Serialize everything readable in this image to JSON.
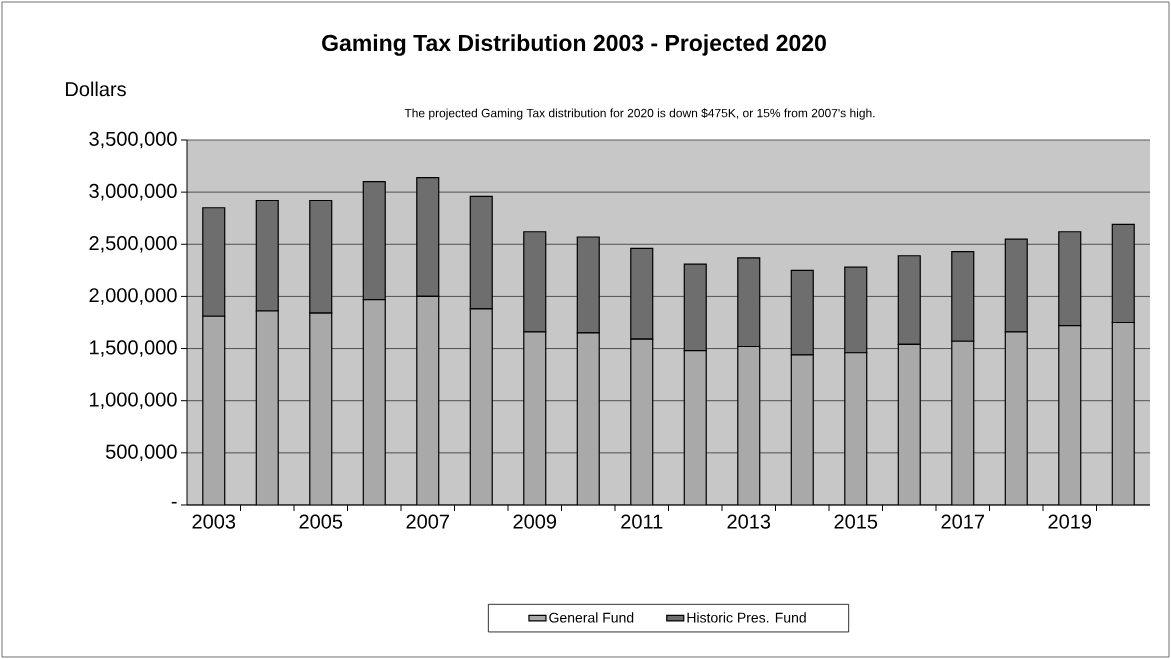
{
  "chart_data": {
    "type": "bar",
    "stacked": true,
    "title": "Gaming Tax Distribution 2003 - Projected 2020",
    "subtitle": "The projected Gaming Tax distribution for 2020 is down $475K, or 15% from 2007's high.",
    "ylabel": "Dollars",
    "categories": [
      "2003",
      null,
      "2005",
      null,
      "2007",
      null,
      "2009",
      null,
      "2011",
      null,
      "2013",
      null,
      "2015",
      null,
      "2017",
      null,
      "2019",
      null
    ],
    "series": [
      {
        "name": "General Fund",
        "color": "#a9a9a9",
        "values": [
          1810000,
          1860000,
          1840000,
          1970000,
          2000000,
          1880000,
          1660000,
          1650000,
          1590000,
          1480000,
          1520000,
          1440000,
          1460000,
          1540000,
          1570000,
          1660000,
          1720000,
          1750000
        ]
      },
      {
        "name": "Historic Pres. Fund",
        "color": "#6e6e6e",
        "values": [
          1040000,
          1060000,
          1080000,
          1130000,
          1140000,
          1080000,
          960000,
          920000,
          870000,
          830000,
          850000,
          810000,
          820000,
          850000,
          860000,
          890000,
          900000,
          940000
        ]
      }
    ],
    "ylim": [
      0,
      3500000
    ],
    "yticks": [
      {
        "value": 0,
        "label": "-"
      },
      {
        "value": 500000,
        "label": "500,000"
      },
      {
        "value": 1000000,
        "label": "1,000,000"
      },
      {
        "value": 1500000,
        "label": "1,500,000"
      },
      {
        "value": 2000000,
        "label": "2,000,000"
      },
      {
        "value": 2500000,
        "label": "2,500,000"
      },
      {
        "value": 3000000,
        "label": "3,000,000"
      },
      {
        "value": 3500000,
        "label": "3,500,000"
      }
    ],
    "grid": "y",
    "legend": "bottom"
  }
}
